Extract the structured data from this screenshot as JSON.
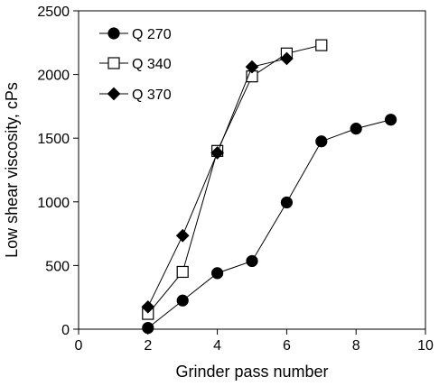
{
  "chart_data": {
    "type": "scatter",
    "title": "",
    "xlabel": "Grinder pass number",
    "ylabel": "Low shear viscosity, cPs",
    "xlim": [
      0,
      10
    ],
    "ylim": [
      0,
      2500
    ],
    "xticks": [
      0,
      2,
      4,
      6,
      8,
      10
    ],
    "yticks": [
      0,
      500,
      1000,
      1500,
      2000,
      2500
    ],
    "grid": false,
    "legend": "top-left",
    "series": [
      {
        "name": "Q 270",
        "marker": "circle",
        "fill": "#000000",
        "x": [
          2,
          3,
          4,
          5,
          6,
          7,
          8,
          9
        ],
        "y": [
          10,
          225,
          440,
          535,
          995,
          1475,
          1575,
          1645
        ]
      },
      {
        "name": "Q 340",
        "marker": "square",
        "fill": "#ffffff",
        "x": [
          2,
          3,
          4,
          5,
          6,
          7
        ],
        "y": [
          120,
          450,
          1400,
          1985,
          2165,
          2230
        ]
      },
      {
        "name": "Q 370",
        "marker": "diamond",
        "fill": "#000000",
        "x": [
          2,
          3,
          4,
          5,
          6
        ],
        "y": [
          175,
          735,
          1385,
          2060,
          2125
        ]
      }
    ]
  }
}
